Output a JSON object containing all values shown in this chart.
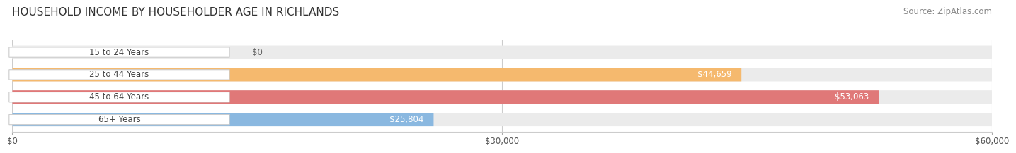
{
  "title": "HOUSEHOLD INCOME BY HOUSEHOLDER AGE IN RICHLANDS",
  "source": "Source: ZipAtlas.com",
  "categories": [
    "15 to 24 Years",
    "25 to 44 Years",
    "45 to 64 Years",
    "65+ Years"
  ],
  "values": [
    0,
    44659,
    53063,
    25804
  ],
  "bar_colors": [
    "#f2a0b8",
    "#f5b96e",
    "#e07878",
    "#8ab8e0"
  ],
  "bar_bg_color": "#ebebeb",
  "max_value": 60000,
  "xticks": [
    0,
    30000,
    60000
  ],
  "xtick_labels": [
    "$0",
    "$30,000",
    "$60,000"
  ],
  "title_fontsize": 11,
  "source_fontsize": 8.5,
  "bar_label_fontsize": 8.5,
  "tick_fontsize": 8.5,
  "background_color": "#ffffff"
}
